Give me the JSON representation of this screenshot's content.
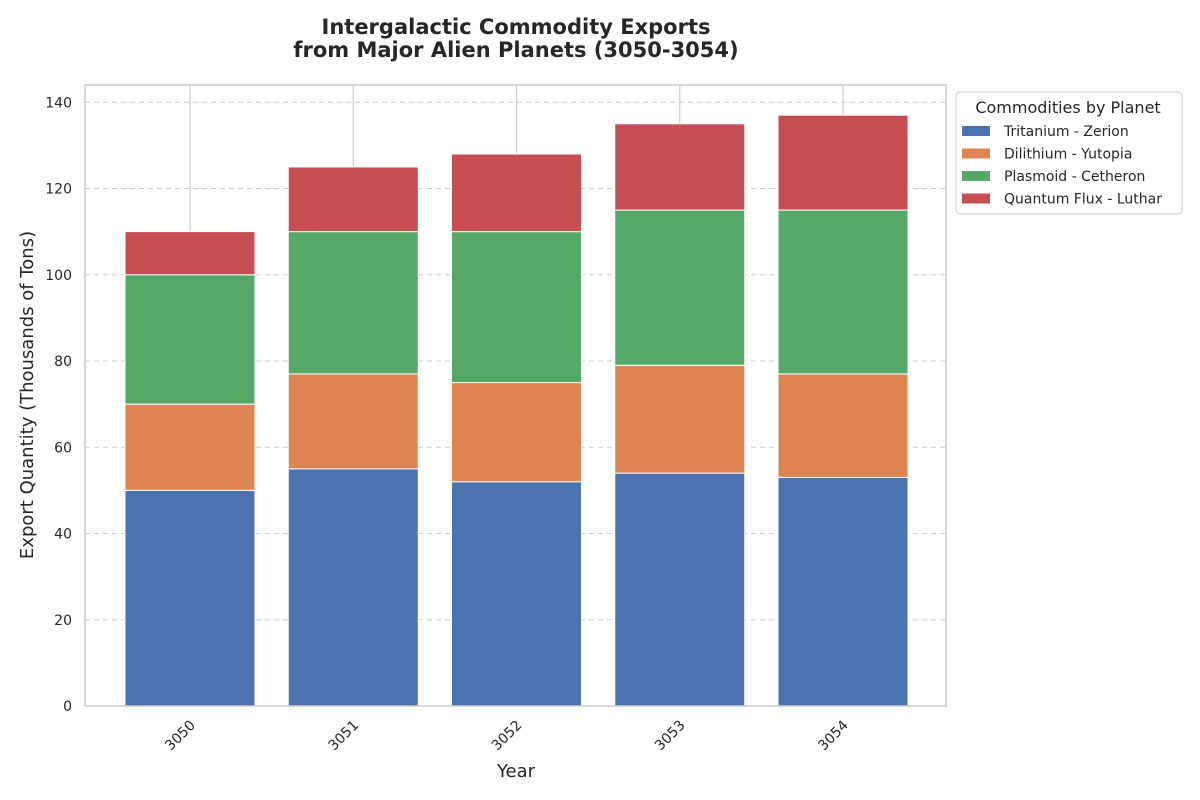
{
  "chart_data": {
    "type": "bar",
    "stacked": true,
    "title_line1": "Intergalactic Commodity Exports",
    "title_line2": "from Major Alien Planets (3050-3054)",
    "xlabel": "Year",
    "ylabel": "Export Quantity (Thousands of Tons)",
    "categories": [
      "3050",
      "3051",
      "3052",
      "3053",
      "3054"
    ],
    "ylim": [
      0,
      144
    ],
    "yticks": [
      0,
      20,
      40,
      60,
      80,
      100,
      120,
      140
    ],
    "grid": "y-dashed",
    "legend": {
      "title": "Commodities by Planet",
      "placement": "outside-top-right"
    },
    "series": [
      {
        "name": "Tritanium - Zerion",
        "color": "#4c72b0",
        "values": [
          50,
          55,
          52,
          54,
          53
        ]
      },
      {
        "name": "Dilithium - Yutopia",
        "color": "#dd8452",
        "values": [
          20,
          22,
          23,
          25,
          24
        ]
      },
      {
        "name": "Plasmoid - Cetheron",
        "color": "#55a868",
        "values": [
          30,
          33,
          35,
          36,
          38
        ]
      },
      {
        "name": "Quantum Flux - Luthar",
        "color": "#c44e52",
        "values": [
          10,
          15,
          18,
          20,
          22
        ]
      }
    ]
  }
}
